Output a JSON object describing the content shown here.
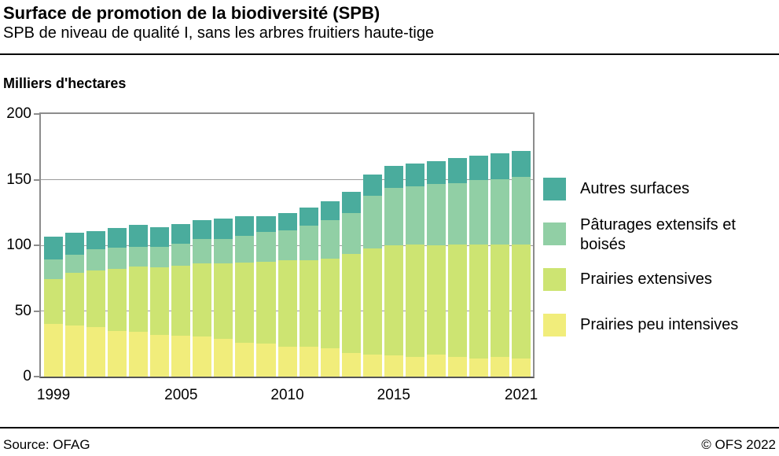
{
  "header": {
    "title": "Surface de promotion de la biodiversité (SPB)",
    "subtitle": "SPB de niveau de qualité I, sans les arbres fruitiers haute-tige"
  },
  "chart_data": {
    "type": "bar",
    "stacked": true,
    "title": "Surface de promotion de la biodiversité (SPB)",
    "subtitle": "SPB de niveau de qualité I, sans les arbres fruitiers haute-tige",
    "y_axis_title": "Milliers d'hectares",
    "ylim": [
      0,
      200
    ],
    "y_ticks": [
      0,
      50,
      100,
      150,
      200
    ],
    "grid": true,
    "legend_position": "right",
    "categories": [
      1999,
      2000,
      2001,
      2002,
      2003,
      2004,
      2005,
      2006,
      2007,
      2008,
      2009,
      2010,
      2011,
      2012,
      2013,
      2014,
      2015,
      2016,
      2017,
      2018,
      2019,
      2020,
      2021
    ],
    "x_ticks": [
      {
        "label": "1999",
        "index": 0
      },
      {
        "label": "2005",
        "index": 6
      },
      {
        "label": "2010",
        "index": 11
      },
      {
        "label": "2015",
        "index": 16
      },
      {
        "label": "2021",
        "index": 22
      }
    ],
    "series": [
      {
        "key": "prairies-peu-intensives",
        "name": "Prairies peu intensives",
        "color": "#F1ED7B",
        "values": [
          40,
          39,
          37.5,
          34.5,
          34,
          32,
          31,
          30.5,
          28.5,
          26,
          25,
          23,
          22.5,
          21.5,
          18,
          17,
          16,
          15,
          16.5,
          15,
          14,
          15,
          14
        ]
      },
      {
        "key": "prairies-extensives",
        "name": "Prairies extensives",
        "color": "#CDE472",
        "values": [
          34.5,
          40,
          43.5,
          47.5,
          50,
          51,
          53.5,
          55.5,
          58,
          61,
          62.5,
          65.5,
          66,
          68.5,
          75.5,
          80.5,
          84,
          85.5,
          83.5,
          85.5,
          86.5,
          85.5,
          86.5
        ]
      },
      {
        "key": "paturages-extensifs-et-boises",
        "name": "Pâturages extensifs et boisés",
        "color": "#91CFA5",
        "values": [
          14.5,
          14,
          16,
          16.5,
          15,
          16,
          17,
          19,
          18.5,
          20.5,
          22.5,
          23,
          26.5,
          29,
          31,
          40,
          43.5,
          44.5,
          47,
          47,
          49,
          50,
          51.5
        ]
      },
      {
        "key": "autres-surfaces",
        "name": "Autres surfaces",
        "color": "#4AAC9D",
        "values": [
          17.5,
          16.5,
          13.5,
          14.5,
          16.5,
          15,
          14.5,
          14,
          15.5,
          14.5,
          12,
          13,
          14,
          14.5,
          16.5,
          16.5,
          17,
          17.5,
          17,
          19,
          18.5,
          19.5,
          20
        ]
      }
    ],
    "legend": [
      {
        "key": "autres-surfaces",
        "label": "Autres surfaces"
      },
      {
        "key": "paturages-extensifs-et-boises",
        "label": "Pâturages extensifs et\nboisés"
      },
      {
        "key": "prairies-extensives",
        "label": "Prairies extensives"
      },
      {
        "key": "prairies-peu-intensives",
        "label": "Prairies peu intensives"
      }
    ]
  },
  "footer": {
    "source": "Source: OFAG",
    "copyright": "© OFS 2022"
  }
}
